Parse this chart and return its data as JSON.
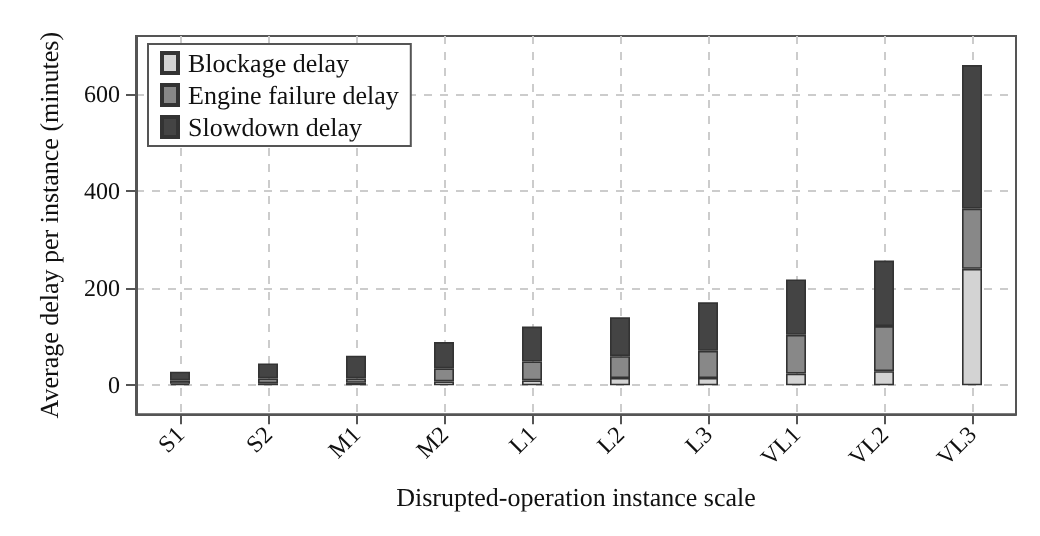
{
  "chart_data": {
    "type": "bar",
    "stacked": true,
    "xlabel": "Disrupted-operation instance scale",
    "ylabel": "Average delay per instance (minutes)",
    "categories": [
      "S1",
      "S2",
      "M1",
      "M2",
      "L1",
      "L2",
      "L3",
      "VL1",
      "VL2",
      "VL3"
    ],
    "series": [
      {
        "name": "Blockage delay",
        "color": "#d3d3d3",
        "values": [
          3,
          4,
          5,
          8,
          10,
          15,
          15,
          24,
          29,
          240
        ]
      },
      {
        "name": "Engine failure delay",
        "color": "#888888",
        "values": [
          7,
          10,
          9,
          27,
          39,
          45,
          56,
          80,
          93,
          124
        ]
      },
      {
        "name": "Slowdown delay",
        "color": "#444444",
        "values": [
          18,
          31,
          47,
          54,
          72,
          80,
          100,
          114,
          135,
          296
        ]
      }
    ],
    "ylim": [
      -60,
      720
    ],
    "yticks": [
      0,
      200,
      400,
      600
    ],
    "grid": true,
    "legend": "top left"
  }
}
